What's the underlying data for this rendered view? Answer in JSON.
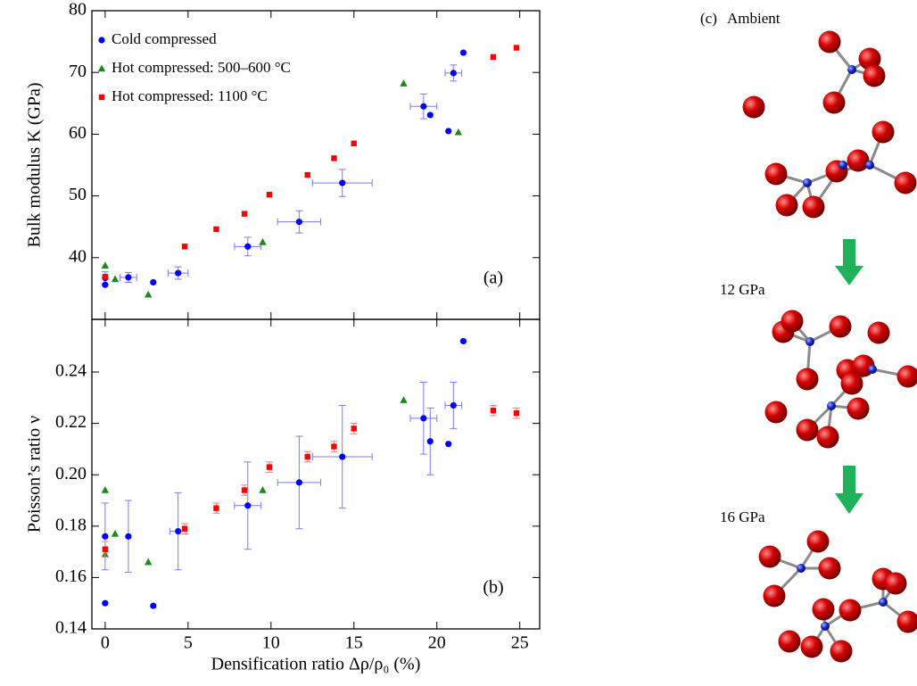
{
  "chart_data": [
    {
      "type": "scatter",
      "panel_label": "(a)",
      "ylabel": "Bulk modulus K (GPa)",
      "xlim": [
        -0.8,
        26.2
      ],
      "xticks": [
        0,
        5,
        10,
        15,
        20,
        25
      ],
      "ylim": [
        30,
        80
      ],
      "yticks": [
        40,
        50,
        60,
        70,
        80
      ],
      "legend": "upper left",
      "series": [
        {
          "name": "Cold compressed",
          "color": "#0000ff",
          "marker": "circle",
          "x": [
            0,
            0,
            1.4,
            2.9,
            4.4,
            8.6,
            11.7,
            14.3,
            19.2,
            19.6,
            20.7,
            21.0,
            21.6
          ],
          "values": [
            36.7,
            35.6,
            36.8,
            36.0,
            37.5,
            41.8,
            45.8,
            52.1,
            64.5,
            63.1,
            60.5,
            69.9,
            73.2
          ],
          "yerr": [
            1.0,
            null,
            0.8,
            null,
            1.0,
            1.5,
            1.8,
            2.2,
            2.0,
            null,
            null,
            1.3,
            null
          ],
          "xerr": [
            null,
            null,
            0.5,
            null,
            0.6,
            0.8,
            1.3,
            1.8,
            0.8,
            null,
            null,
            0.5,
            null
          ]
        },
        {
          "name": "Hot compressed: 500–600 °C",
          "color": "#1a8a1a",
          "marker": "triangle",
          "x": [
            0,
            0.6,
            2.6,
            9.5,
            18.0,
            21.3
          ],
          "values": [
            38.7,
            36.5,
            34.0,
            42.5,
            68.2,
            60.3
          ]
        },
        {
          "name": "Hot compressed: 1100 °C",
          "color": "#ff0000",
          "marker": "square",
          "x": [
            0,
            4.8,
            6.7,
            8.4,
            9.9,
            12.2,
            13.8,
            15.0,
            23.4,
            24.8
          ],
          "values": [
            36.9,
            41.8,
            44.6,
            47.1,
            50.2,
            53.4,
            56.1,
            58.5,
            72.5,
            74.0
          ]
        }
      ]
    },
    {
      "type": "scatter",
      "panel_label": "(b)",
      "ylabel": "Poisson’s ratio ν",
      "xlabel": "Densification ratio Δρ/ρ₀ (%)",
      "xlim": [
        -0.8,
        26.2
      ],
      "xticks": [
        0,
        5,
        10,
        15,
        20,
        25
      ],
      "ylim": [
        0.14,
        0.2605
      ],
      "yticks": [
        0.14,
        0.16,
        0.18,
        {
          "value": 0.2,
          "label": "0.20"
        },
        0.22,
        0.24
      ],
      "series": [
        {
          "color": "#0000ff",
          "marker": "circle",
          "x": [
            0,
            0,
            1.4,
            2.9,
            4.4,
            8.6,
            11.7,
            14.3,
            19.2,
            19.6,
            20.7,
            21.0,
            21.6
          ],
          "values": [
            0.176,
            0.15,
            0.176,
            0.149,
            0.178,
            0.188,
            0.197,
            0.207,
            0.222,
            0.213,
            0.212,
            0.227,
            0.252
          ],
          "yerr": [
            0.013,
            null,
            0.014,
            null,
            0.015,
            0.017,
            0.018,
            0.02,
            0.014,
            0.013,
            null,
            0.009,
            null
          ],
          "xerr": [
            null,
            null,
            null,
            null,
            0.5,
            0.8,
            1.3,
            1.8,
            0.8,
            null,
            null,
            0.5,
            null
          ]
        },
        {
          "color": "#1a8a1a",
          "marker": "triangle",
          "x": [
            0,
            0,
            0.6,
            2.6,
            9.5,
            18.0
          ],
          "values": [
            0.194,
            0.169,
            0.177,
            0.166,
            0.194,
            0.229
          ]
        },
        {
          "color": "#ff0000",
          "marker": "square",
          "x": [
            0,
            4.8,
            6.7,
            8.4,
            9.9,
            12.2,
            13.8,
            15.0,
            23.4,
            24.8
          ],
          "values": [
            0.171,
            0.179,
            0.187,
            0.194,
            0.203,
            0.207,
            0.211,
            0.218,
            0.225,
            0.224
          ],
          "yerr": [
            0.003,
            0.002,
            0.002,
            0.002,
            0.002,
            0.002,
            0.002,
            0.002,
            0.002,
            0.002
          ]
        }
      ]
    }
  ],
  "illustration": {
    "label": "(c)",
    "stages": [
      "Ambient",
      "12 GPa",
      "16 GPa"
    ]
  }
}
